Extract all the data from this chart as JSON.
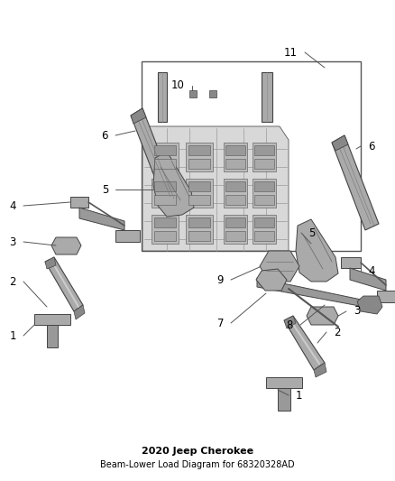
{
  "title": "2020 Jeep Cherokee",
  "subtitle": "Beam-Lower Load Diagram for 68320328AD",
  "background_color": "#ffffff",
  "figure_width": 4.38,
  "figure_height": 5.33,
  "dpi": 100,
  "text_color": "#000000",
  "label_fontsize": 8.5,
  "leader_line_color": "#555555",
  "part_edge_color": "#333333",
  "part_face_color": "#aaaaaa",
  "part_dark_color": "#777777",
  "part_light_color": "#cccccc"
}
